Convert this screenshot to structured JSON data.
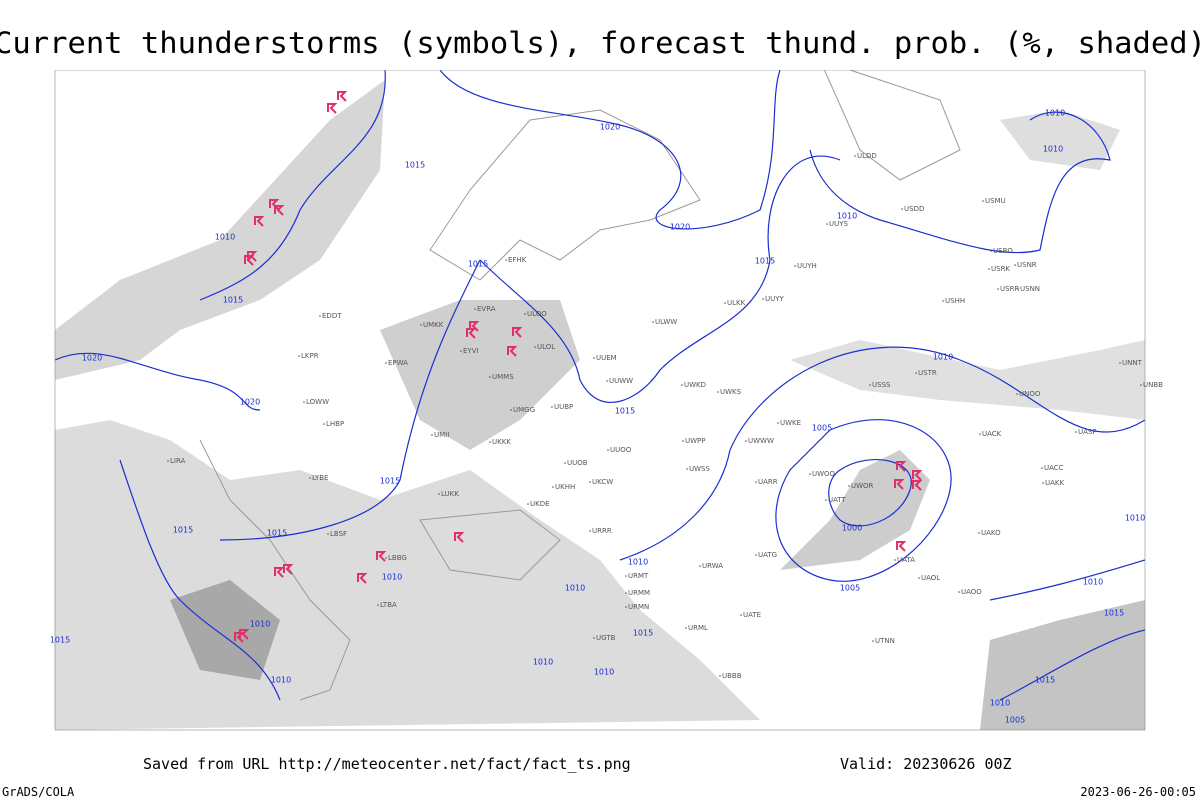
{
  "title": "Current thunderstorms (symbols), forecast thund. prob. (%, shaded)",
  "footer": {
    "saved": "Saved from URL http://meteocenter.net/fact/fact_ts.png",
    "valid": "Valid: 20230626 00Z",
    "credit": "GrADS/COLA",
    "timestamp": "2023-06-26-00:05"
  },
  "isobar_labels": [
    "1020",
    "1015",
    "1010",
    "1015",
    "1020",
    "1015",
    "1015",
    "1020",
    "1020",
    "1015",
    "1010",
    "1010",
    "1010",
    "1010",
    "1005",
    "1000",
    "1015",
    "1015",
    "1015",
    "1010",
    "1010",
    "1010",
    "1010",
    "1010",
    "1010",
    "1015",
    "1010",
    "1005",
    "1010",
    "1010",
    "1015",
    "1015",
    "1010",
    "1005",
    "1015"
  ],
  "stations": [
    "ULOO",
    "ULOL",
    "UUEM",
    "UUWW",
    "UUOO",
    "UUOB",
    "UKHH",
    "UKDE",
    "UKCW",
    "URRR",
    "URWA",
    "UATG",
    "UARR",
    "UWPP",
    "UWSS",
    "UWKS",
    "UWKE",
    "UWKD",
    "UWWW",
    "UWOO",
    "UWOR",
    "UATT",
    "UACC",
    "UAKK",
    "UACK",
    "UASP",
    "UAOO",
    "UAOL",
    "UATA",
    "UAKO",
    "UUYH",
    "UUYY",
    "ULKK",
    "ULWW",
    "UUYS",
    "USRR",
    "USNN",
    "USRK",
    "USRO",
    "USNR",
    "USDD",
    "USMU",
    "USSS",
    "USTR",
    "UNOO",
    "UNNT",
    "UNBB",
    "USHH",
    "ULDD",
    "EPWA",
    "UMMS",
    "UMGG",
    "UUBP",
    "UKKK",
    "LUKK",
    "LBSF",
    "LBBG",
    "LTBA",
    "LHBP",
    "LOWW",
    "EDDT",
    "LKPR",
    "LIRA",
    "LYBE",
    "UMKK",
    "EVRA",
    "EYVI",
    "EFHK",
    "UMII",
    "URMT",
    "URMM",
    "URMN",
    "UGTB",
    "UBBB",
    "UTNN",
    "UATE",
    "URML"
  ]
}
